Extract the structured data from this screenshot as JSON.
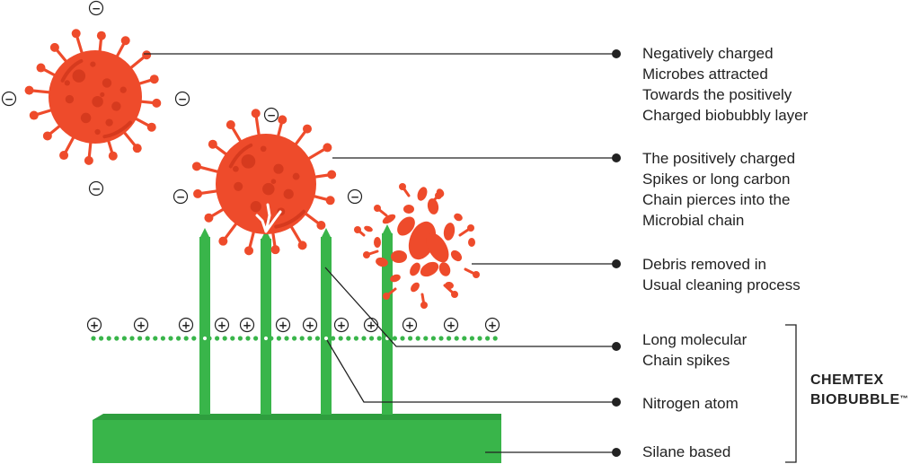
{
  "callouts": [
    {
      "lines": [
        "Negatively charged",
        "Microbes attracted",
        "Towards the positively",
        "Charged biobubbly layer"
      ]
    },
    {
      "lines": [
        "The positively charged",
        "Spikes or long carbon",
        "Chain pierces into the",
        "Microbial chain"
      ]
    },
    {
      "lines": [
        "Debris removed in",
        "Usual cleaning process"
      ]
    },
    {
      "lines": [
        "Long molecular",
        "Chain spikes"
      ]
    },
    {
      "lines": [
        "Nitrogen atom"
      ]
    },
    {
      "lines": [
        "Silane based"
      ]
    }
  ],
  "brand": {
    "line1": "CHEMTEX",
    "line2": "BIOBUBBLE",
    "trademark": "™"
  },
  "charges": {
    "negative": "−",
    "positive": "+"
  },
  "colors": {
    "microbe": "#EE4B2B",
    "microbe_dark": "#D63A1E",
    "green": "#39B54A",
    "green_dark": "#2E9E3E",
    "line": "#222222"
  }
}
